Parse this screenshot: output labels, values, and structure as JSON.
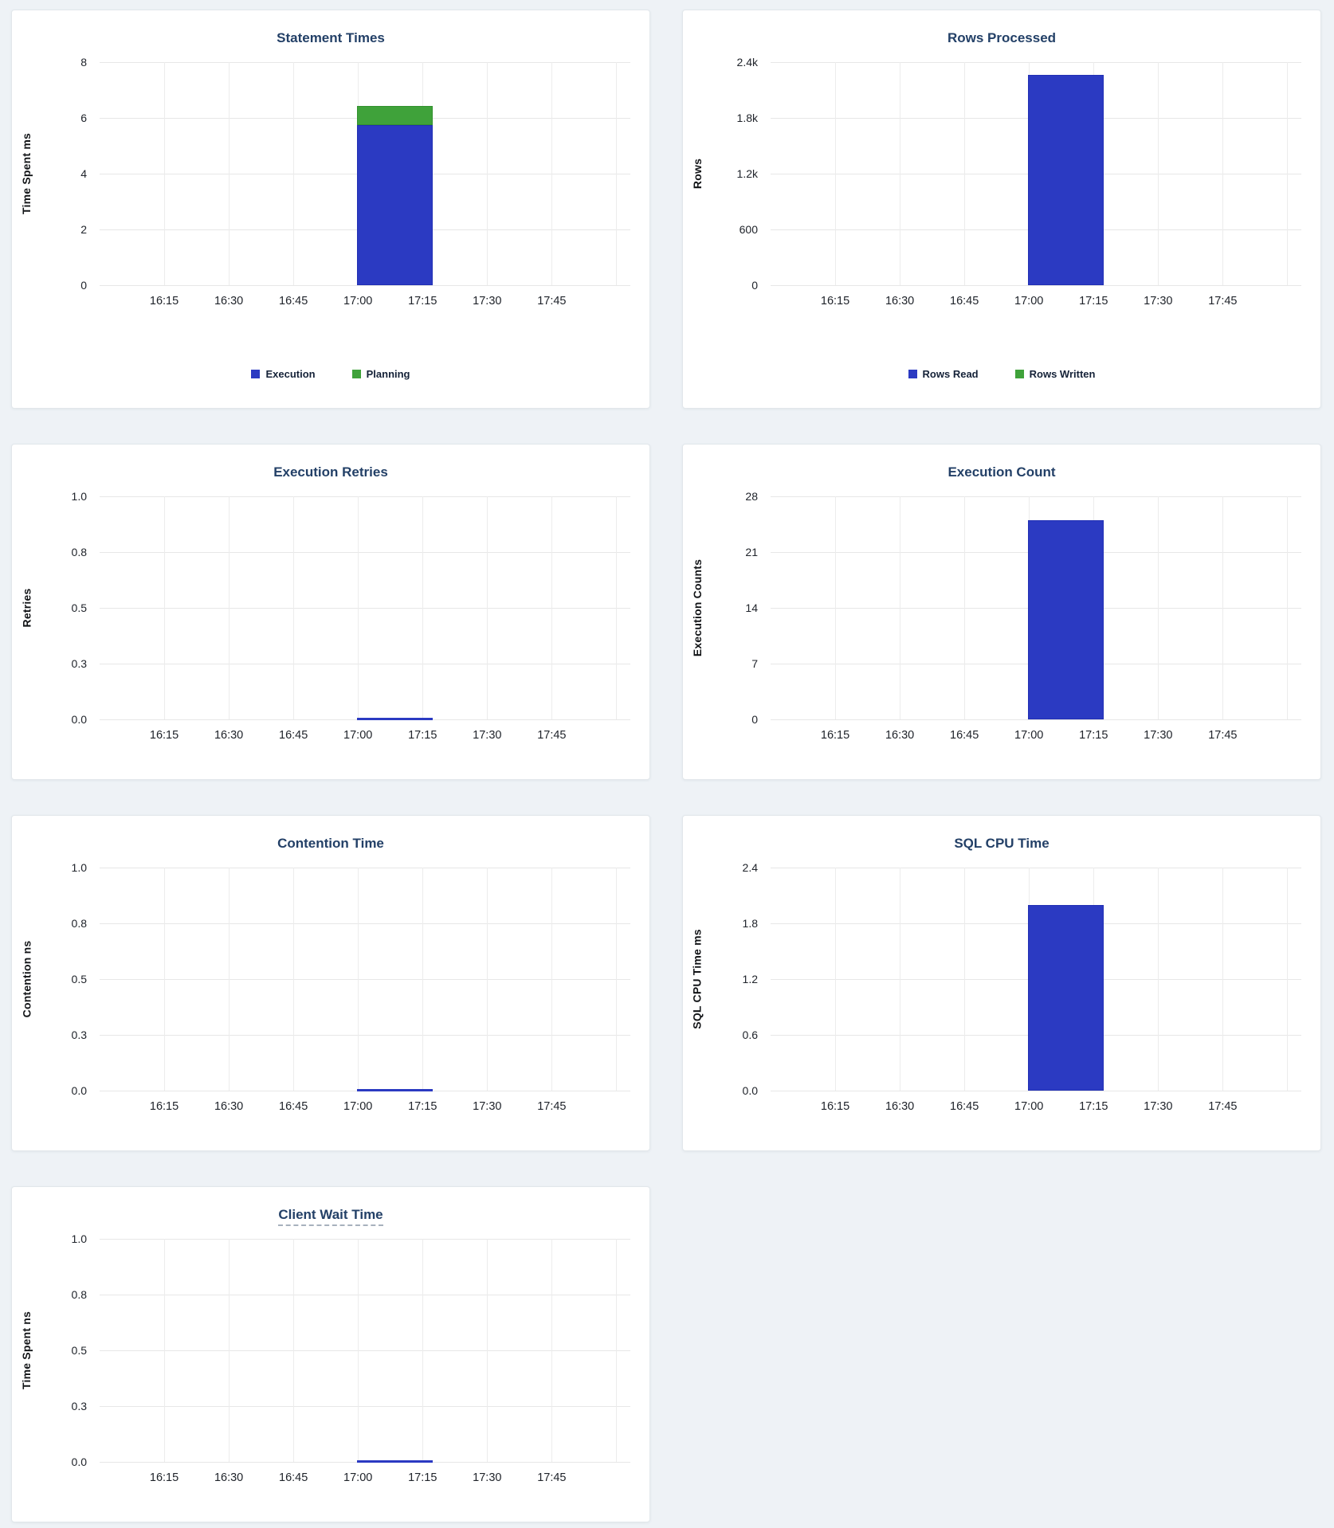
{
  "page": {
    "background": "#eef2f6"
  },
  "colors": {
    "blue": "#2b3ac2",
    "blue_border": "#2230b4",
    "green": "#3fa23a",
    "green_border": "#33912f",
    "title_text": "#234067",
    "grid": "#e7e7e7",
    "tick_text": "#20242b",
    "card_bg": "#ffffff",
    "card_border": "#e2e7eb",
    "tooltip_underline": "#a7b1bd"
  },
  "chart_data": [
    {
      "id": "statement-times",
      "type": "bar",
      "title": "Statement Times",
      "ylabel": "Time Spent ms",
      "ylim": [
        0,
        8
      ],
      "ymax": 8,
      "yticks": [
        "8",
        "6",
        "4",
        "2",
        "0"
      ],
      "xticks": [
        "16:15",
        "16:30",
        "16:45",
        "17:00",
        "17:15",
        "17:30",
        "17:45"
      ],
      "bucket": [
        "17:00",
        "17:15"
      ],
      "stacked": true,
      "grid": true,
      "legend_position": "bottom",
      "series": [
        {
          "name": "Execution",
          "color_key": "blue",
          "value": 5.75
        },
        {
          "name": "Planning",
          "color_key": "green",
          "value": 0.68
        }
      ],
      "legend": [
        {
          "label": "Execution",
          "color_key": "blue"
        },
        {
          "label": "Planning",
          "color_key": "green"
        }
      ]
    },
    {
      "id": "rows-processed",
      "type": "bar",
      "title": "Rows Processed",
      "ylabel": "Rows",
      "ylim": [
        0,
        2400
      ],
      "ymax": 2400,
      "yticks": [
        "2.4k",
        "1.8k",
        "1.2k",
        "600",
        "0"
      ],
      "xticks": [
        "16:15",
        "16:30",
        "16:45",
        "17:00",
        "17:15",
        "17:30",
        "17:45"
      ],
      "bucket": [
        "17:00",
        "17:15"
      ],
      "stacked": true,
      "grid": true,
      "legend_position": "bottom",
      "series": [
        {
          "name": "Rows Read",
          "color_key": "blue",
          "value": 2260
        },
        {
          "name": "Rows Written",
          "color_key": "green",
          "value": 0
        }
      ],
      "legend": [
        {
          "label": "Rows Read",
          "color_key": "blue"
        },
        {
          "label": "Rows Written",
          "color_key": "green"
        }
      ]
    },
    {
      "id": "execution-retries",
      "type": "bar",
      "title": "Execution Retries",
      "ylabel": "Retries",
      "ylim": [
        0,
        1.0
      ],
      "ymax": 1.0,
      "yticks": [
        "1.0",
        "0.8",
        "0.5",
        "0.3",
        "0.0"
      ],
      "xticks": [
        "16:15",
        "16:30",
        "16:45",
        "17:00",
        "17:15",
        "17:30",
        "17:45"
      ],
      "bucket": [
        "17:00",
        "17:15"
      ],
      "grid": true,
      "zero_line": true,
      "series": [
        {
          "name": "Retries",
          "color_key": "blue",
          "value": 0
        }
      ]
    },
    {
      "id": "execution-count",
      "type": "bar",
      "title": "Execution Count",
      "ylabel": "Execution Counts",
      "ylim": [
        0,
        28
      ],
      "ymax": 28,
      "yticks": [
        "28",
        "21",
        "14",
        "7",
        "0"
      ],
      "xticks": [
        "16:15",
        "16:30",
        "16:45",
        "17:00",
        "17:15",
        "17:30",
        "17:45"
      ],
      "bucket": [
        "17:00",
        "17:15"
      ],
      "grid": true,
      "series": [
        {
          "name": "Execution Count",
          "color_key": "blue",
          "value": 25
        }
      ]
    },
    {
      "id": "contention-time",
      "type": "bar",
      "title": "Contention Time",
      "ylabel": "Contention ns",
      "ylim": [
        0,
        1.0
      ],
      "ymax": 1.0,
      "yticks": [
        "1.0",
        "0.8",
        "0.5",
        "0.3",
        "0.0"
      ],
      "xticks": [
        "16:15",
        "16:30",
        "16:45",
        "17:00",
        "17:15",
        "17:30",
        "17:45"
      ],
      "bucket": [
        "17:00",
        "17:15"
      ],
      "grid": true,
      "zero_line": true,
      "series": [
        {
          "name": "Contention",
          "color_key": "blue",
          "value": 0
        }
      ]
    },
    {
      "id": "sql-cpu-time",
      "type": "bar",
      "title": "SQL CPU Time",
      "ylabel": "SQL CPU Time ms",
      "ylim": [
        0,
        2.4
      ],
      "ymax": 2.4,
      "yticks": [
        "2.4",
        "1.8",
        "1.2",
        "0.6",
        "0.0"
      ],
      "xticks": [
        "16:15",
        "16:30",
        "16:45",
        "17:00",
        "17:15",
        "17:30",
        "17:45"
      ],
      "bucket": [
        "17:00",
        "17:15"
      ],
      "grid": true,
      "series": [
        {
          "name": "SQL CPU Time",
          "color_key": "blue",
          "value": 2.0
        }
      ]
    },
    {
      "id": "client-wait-time",
      "type": "bar",
      "title": "Client Wait Time",
      "title_tooltip": true,
      "ylabel": "Time Spent ns",
      "ylim": [
        0,
        1.0
      ],
      "ymax": 1.0,
      "yticks": [
        "1.0",
        "0.8",
        "0.5",
        "0.3",
        "0.0"
      ],
      "xticks": [
        "16:15",
        "16:30",
        "16:45",
        "17:00",
        "17:15",
        "17:30",
        "17:45"
      ],
      "bucket": [
        "17:00",
        "17:15"
      ],
      "grid": true,
      "zero_line": true,
      "series": [
        {
          "name": "Client Wait",
          "color_key": "blue",
          "value": 0
        }
      ]
    }
  ]
}
